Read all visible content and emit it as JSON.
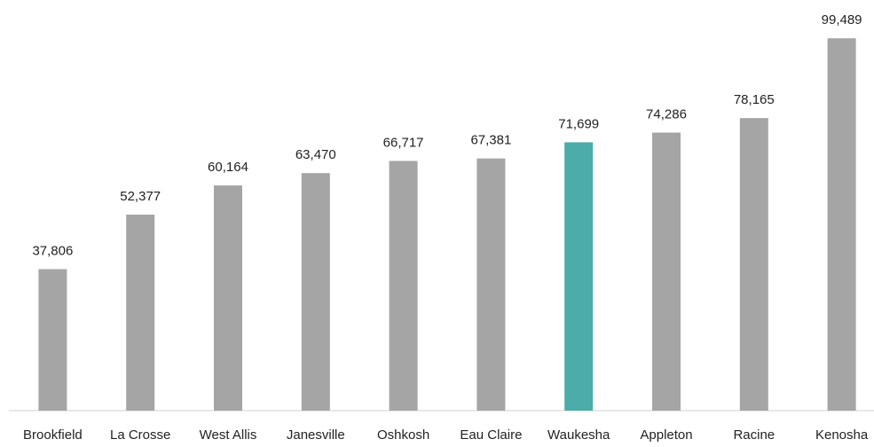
{
  "chart_data": {
    "type": "bar",
    "categories": [
      "Brookfield",
      "La Crosse",
      "West Allis",
      "Janesville",
      "Oshkosh",
      "Eau Claire",
      "Waukesha",
      "Appleton",
      "Racine",
      "Kenosha"
    ],
    "values": [
      37806,
      52377,
      60164,
      63470,
      66717,
      67381,
      71699,
      74286,
      78165,
      99489
    ],
    "value_labels": [
      "37,806",
      "52,377",
      "60,164",
      "63,470",
      "66,717",
      "67,381",
      "71,699",
      "74,286",
      "78,165",
      "99,489"
    ],
    "colors": [
      "#a5a5a5",
      "#a5a5a5",
      "#a5a5a5",
      "#a5a5a5",
      "#a5a5a5",
      "#a5a5a5",
      "#4bacaa",
      "#a5a5a5",
      "#a5a5a5",
      "#a5a5a5"
    ],
    "ylim": [
      0,
      100000
    ]
  }
}
